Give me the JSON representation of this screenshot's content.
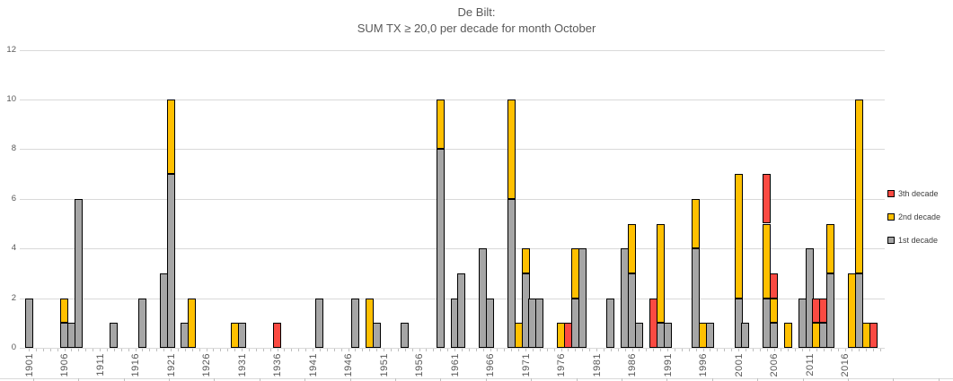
{
  "title": {
    "line1": "De Bilt:",
    "line2": "SUM TX ≥ 20,0  per decade for month  October"
  },
  "legend": [
    {
      "label": "3th decade",
      "series": "third",
      "color": "#fb4a42"
    },
    {
      "label": "2nd decade",
      "series": "second",
      "color": "#ffc000"
    },
    {
      "label": "1st decade",
      "series": "first",
      "color": "#a6a6a6"
    }
  ],
  "chart_data": {
    "type": "bar",
    "stacked": true,
    "title": "De Bilt: SUM TX ≥ 20,0 per decade for month October",
    "grid": "horizontal",
    "legend_position": "right",
    "x_axis": {
      "min": 1901,
      "max": 2021,
      "tick_interval": 1,
      "label_interval": 5,
      "tick_labels": [
        "1901",
        "1906",
        "1911",
        "1916",
        "1921",
        "1926",
        "1931",
        "1936",
        "1941",
        "1946",
        "1951",
        "1956",
        "1961",
        "1966",
        "1971",
        "1976",
        "1981",
        "1986",
        "1991",
        "1996",
        "2001",
        "2006",
        "2011",
        "2016"
      ]
    },
    "y_axis": {
      "min": 0,
      "max": 12,
      "tick_interval": 2,
      "tick_labels": [
        "0",
        "2",
        "4",
        "6",
        "8",
        "10",
        "12"
      ]
    },
    "series_order": [
      "first",
      "second",
      "third"
    ],
    "series_names": {
      "first": "1st decade",
      "second": "2nd decade",
      "third": "3th decade"
    },
    "series_colors": {
      "first": "#a6a6a6",
      "second": "#ffc000",
      "third": "#fb4a42"
    },
    "bar_border_color": "#000000",
    "values": [
      {
        "year": 1901,
        "first": 2,
        "second": 0,
        "third": 0
      },
      {
        "year": 1906,
        "first": 1,
        "second": 1,
        "third": 0
      },
      {
        "year": 1907,
        "first": 1,
        "second": 0,
        "third": 0
      },
      {
        "year": 1908,
        "first": 6,
        "second": 0,
        "third": 0
      },
      {
        "year": 1913,
        "first": 1,
        "second": 0,
        "third": 0
      },
      {
        "year": 1917,
        "first": 2,
        "second": 0,
        "third": 0
      },
      {
        "year": 1920,
        "first": 3,
        "second": 0,
        "third": 0
      },
      {
        "year": 1921,
        "first": 7,
        "second": 3,
        "third": 0
      },
      {
        "year": 1923,
        "first": 1,
        "second": 0,
        "third": 0
      },
      {
        "year": 1924,
        "first": 0,
        "second": 2,
        "third": 0
      },
      {
        "year": 1930,
        "first": 0,
        "second": 1,
        "third": 0
      },
      {
        "year": 1931,
        "first": 1,
        "second": 0,
        "third": 0
      },
      {
        "year": 1936,
        "first": 0,
        "second": 0,
        "third": 1
      },
      {
        "year": 1942,
        "first": 2,
        "second": 0,
        "third": 0
      },
      {
        "year": 1947,
        "first": 2,
        "second": 0,
        "third": 0
      },
      {
        "year": 1949,
        "first": 0,
        "second": 2,
        "third": 0
      },
      {
        "year": 1950,
        "first": 1,
        "second": 0,
        "third": 0
      },
      {
        "year": 1954,
        "first": 1,
        "second": 0,
        "third": 0
      },
      {
        "year": 1959,
        "first": 8,
        "second": 2,
        "third": 0
      },
      {
        "year": 1961,
        "first": 2,
        "second": 0,
        "third": 0
      },
      {
        "year": 1962,
        "first": 3,
        "second": 0,
        "third": 0
      },
      {
        "year": 1965,
        "first": 4,
        "second": 0,
        "third": 0
      },
      {
        "year": 1966,
        "first": 2,
        "second": 0,
        "third": 0
      },
      {
        "year": 1969,
        "first": 6,
        "second": 4,
        "third": 0
      },
      {
        "year": 1970,
        "first": 0,
        "second": 1,
        "third": 0
      },
      {
        "year": 1971,
        "first": 3,
        "second": 1,
        "third": 0
      },
      {
        "year": 1972,
        "first": 2,
        "second": 0,
        "third": 0
      },
      {
        "year": 1973,
        "first": 2,
        "second": 0,
        "third": 0
      },
      {
        "year": 1976,
        "first": 0,
        "second": 1,
        "third": 0
      },
      {
        "year": 1977,
        "first": 0,
        "second": 0,
        "third": 1
      },
      {
        "year": 1978,
        "first": 2,
        "second": 2,
        "third": 0
      },
      {
        "year": 1979,
        "first": 4,
        "second": 0,
        "third": 0
      },
      {
        "year": 1983,
        "first": 2,
        "second": 0,
        "third": 0
      },
      {
        "year": 1985,
        "first": 4,
        "second": 0,
        "third": 0
      },
      {
        "year": 1986,
        "first": 3,
        "second": 2,
        "third": 0
      },
      {
        "year": 1987,
        "first": 1,
        "second": 0,
        "third": 0
      },
      {
        "year": 1989,
        "first": 0,
        "second": 0,
        "third": 2
      },
      {
        "year": 1990,
        "first": 1,
        "second": 4,
        "third": 0
      },
      {
        "year": 1991,
        "first": 1,
        "second": 0,
        "third": 0
      },
      {
        "year": 1995,
        "first": 4,
        "second": 2,
        "third": 0
      },
      {
        "year": 1996,
        "first": 0,
        "second": 1,
        "third": 0
      },
      {
        "year": 1997,
        "first": 1,
        "second": 0,
        "third": 0
      },
      {
        "year": 2001,
        "first": 2,
        "second": 5,
        "third": 0
      },
      {
        "year": 2002,
        "first": 1,
        "second": 0,
        "third": 0
      },
      {
        "year": 2005,
        "first": 2,
        "second": 3,
        "third": 2
      },
      {
        "year": 2006,
        "first": 1,
        "second": 1,
        "third": 1
      },
      {
        "year": 2008,
        "first": 0,
        "second": 1,
        "third": 0
      },
      {
        "year": 2010,
        "first": 2,
        "second": 0,
        "third": 0
      },
      {
        "year": 2011,
        "first": 4,
        "second": 0,
        "third": 0
      },
      {
        "year": 2012,
        "first": 0,
        "second": 1,
        "third": 1
      },
      {
        "year": 2013,
        "first": 1,
        "second": 0,
        "third": 1
      },
      {
        "year": 2014,
        "first": 3,
        "second": 2,
        "third": 0
      },
      {
        "year": 2017,
        "first": 0,
        "second": 3,
        "third": 0
      },
      {
        "year": 2018,
        "first": 3,
        "second": 7,
        "third": 0
      },
      {
        "year": 2019,
        "first": 0,
        "second": 1,
        "third": 0
      },
      {
        "year": 2020,
        "first": 0,
        "second": 0,
        "third": 1
      }
    ]
  }
}
